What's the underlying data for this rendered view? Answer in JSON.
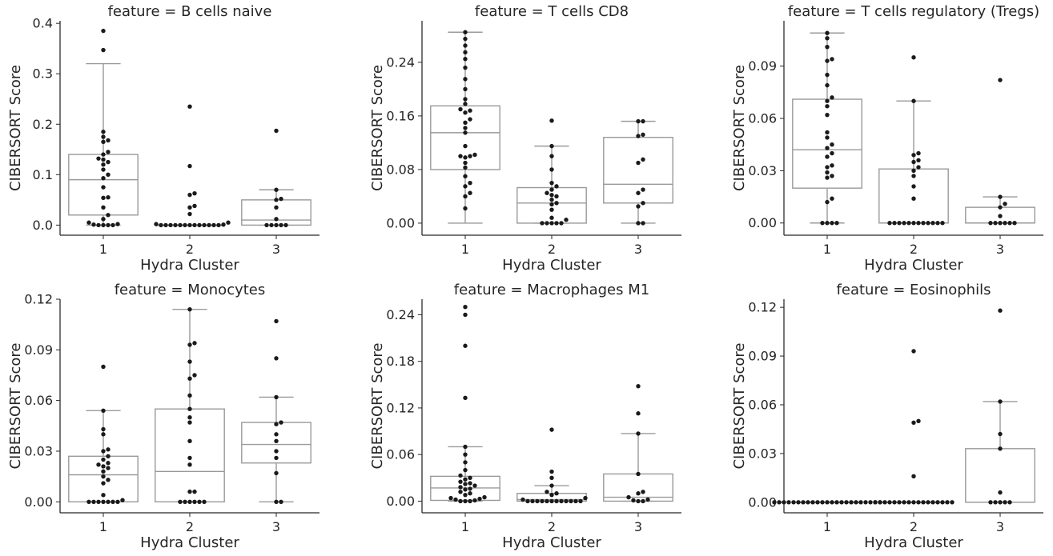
{
  "chart_data": [
    {
      "type": "box",
      "title": "feature = B cells naive",
      "xlabel": "Hydra Cluster",
      "ylabel": "CIBERSORT Score",
      "categories": [
        "1",
        "2",
        "3"
      ],
      "yticks": [
        "0.0",
        "0.1",
        "0.2",
        "0.3",
        "0.4"
      ],
      "ytick_values": [
        0,
        0.1,
        0.2,
        0.3,
        0.4
      ],
      "ylim": [
        -0.02,
        0.405
      ],
      "groups": [
        {
          "name": "1",
          "q1": 0.02,
          "median": 0.09,
          "q3": 0.14,
          "whisker_low": 0.0,
          "whisker_high": 0.32,
          "points": [
            0.385,
            0.347,
            0.185,
            0.175,
            0.168,
            0.165,
            0.145,
            0.14,
            0.132,
            0.13,
            0.125,
            0.12,
            0.11,
            0.1,
            0.093,
            0.075,
            0.055,
            0.054,
            0.035,
            0.02,
            0.012,
            0.005,
            0.002,
            0.001,
            0.0,
            0.0,
            0.0,
            0.0
          ]
        },
        {
          "name": "2",
          "q1": 0.0,
          "median": 0.0,
          "q3": 0.0,
          "whisker_low": 0.0,
          "whisker_high": 0.0,
          "points": [
            0.235,
            0.117,
            0.063,
            0.06,
            0.038,
            0.035,
            0.022,
            0.005,
            0.002,
            0.001,
            0.0,
            0.0,
            0.0,
            0.0,
            0.0,
            0.0,
            0.0,
            0.0,
            0.0,
            0.0,
            0.0,
            0.0,
            0.0
          ]
        },
        {
          "name": "3",
          "q1": 0.0,
          "median": 0.01,
          "q3": 0.05,
          "whisker_low": 0.0,
          "whisker_high": 0.07,
          "points": [
            0.187,
            0.07,
            0.052,
            0.05,
            0.035,
            0.012,
            0.0,
            0.0,
            0.0,
            0.0,
            0.0
          ]
        }
      ]
    },
    {
      "type": "box",
      "title": "feature = T cells CD8",
      "xlabel": "Hydra Cluster",
      "ylabel": "CIBERSORT Score",
      "categories": [
        "1",
        "2",
        "3"
      ],
      "yticks": [
        "0.00",
        "0.08",
        "0.16",
        "0.24"
      ],
      "ytick_values": [
        0,
        0.08,
        0.16,
        0.24
      ],
      "ylim": [
        -0.018,
        0.302
      ],
      "groups": [
        {
          "name": "1",
          "q1": 0.08,
          "median": 0.135,
          "q3": 0.175,
          "whisker_low": 0.0,
          "whisker_high": 0.285,
          "points": [
            0.285,
            0.275,
            0.265,
            0.255,
            0.245,
            0.232,
            0.215,
            0.2,
            0.185,
            0.178,
            0.17,
            0.168,
            0.165,
            0.155,
            0.15,
            0.142,
            0.135,
            0.115,
            0.102,
            0.1,
            0.1,
            0.098,
            0.09,
            0.083,
            0.07,
            0.06,
            0.055,
            0.045,
            0.04,
            0.022
          ]
        },
        {
          "name": "2",
          "q1": 0.0,
          "median": 0.03,
          "q3": 0.053,
          "whisker_low": 0.0,
          "whisker_high": 0.115,
          "points": [
            0.153,
            0.115,
            0.1,
            0.08,
            0.06,
            0.055,
            0.05,
            0.045,
            0.042,
            0.04,
            0.035,
            0.03,
            0.028,
            0.02,
            0.008,
            0.005,
            0.0,
            0.0,
            0.0,
            0.0,
            0.0
          ]
        },
        {
          "name": "3",
          "q1": 0.03,
          "median": 0.058,
          "q3": 0.128,
          "whisker_low": 0.0,
          "whisker_high": 0.152,
          "points": [
            0.152,
            0.152,
            0.132,
            0.13,
            0.095,
            0.09,
            0.05,
            0.045,
            0.03,
            0.025,
            0.0,
            0.0
          ]
        }
      ]
    },
    {
      "type": "box",
      "title": "feature = T cells regulatory (Tregs)",
      "xlabel": "Hydra Cluster",
      "ylabel": "CIBERSORT Score",
      "categories": [
        "1",
        "2",
        "3"
      ],
      "yticks": [
        "0.00",
        "0.03",
        "0.06",
        "0.09"
      ],
      "ytick_values": [
        0,
        0.03,
        0.06,
        0.09
      ],
      "ylim": [
        -0.007,
        0.116
      ],
      "groups": [
        {
          "name": "1",
          "q1": 0.02,
          "median": 0.042,
          "q3": 0.071,
          "whisker_low": 0.0,
          "whisker_high": 0.109,
          "points": [
            0.109,
            0.106,
            0.101,
            0.094,
            0.093,
            0.085,
            0.079,
            0.072,
            0.07,
            0.067,
            0.062,
            0.052,
            0.049,
            0.045,
            0.043,
            0.04,
            0.038,
            0.033,
            0.032,
            0.029,
            0.027,
            0.026,
            0.014,
            0.012,
            0.0,
            0.0,
            0.0,
            0.0
          ]
        },
        {
          "name": "2",
          "q1": 0.0,
          "median": 0.0,
          "q3": 0.031,
          "whisker_low": 0.0,
          "whisker_high": 0.07,
          "points": [
            0.095,
            0.07,
            0.04,
            0.039,
            0.036,
            0.035,
            0.032,
            0.03,
            0.027,
            0.021,
            0.014,
            0.0,
            0.0,
            0.0,
            0.0,
            0.0,
            0.0,
            0.0,
            0.0,
            0.0,
            0.0,
            0.0,
            0.0
          ]
        },
        {
          "name": "3",
          "q1": 0.0,
          "median": 0.0,
          "q3": 0.009,
          "whisker_low": 0.0,
          "whisker_high": 0.015,
          "points": [
            0.082,
            0.015,
            0.011,
            0.009,
            0.004,
            0.0,
            0.0,
            0.0,
            0.0,
            0.0,
            0.0
          ]
        }
      ]
    },
    {
      "type": "box",
      "title": "feature = Monocytes",
      "xlabel": "Hydra Cluster",
      "ylabel": "CIBERSORT Score",
      "categories": [
        "1",
        "2",
        "3"
      ],
      "yticks": [
        "0.00",
        "0.03",
        "0.06",
        "0.09",
        "0.12"
      ],
      "ytick_values": [
        0,
        0.03,
        0.06,
        0.09,
        0.12
      ],
      "ylim": [
        -0.0065,
        0.12
      ],
      "groups": [
        {
          "name": "1",
          "q1": 0.0,
          "median": 0.016,
          "q3": 0.027,
          "whisker_low": 0.0,
          "whisker_high": 0.054,
          "points": [
            0.08,
            0.054,
            0.043,
            0.04,
            0.031,
            0.03,
            0.027,
            0.025,
            0.023,
            0.022,
            0.021,
            0.02,
            0.018,
            0.015,
            0.013,
            0.011,
            0.004,
            0.001,
            0.0,
            0.0,
            0.0,
            0.0,
            0.0,
            0.0,
            0.0
          ]
        },
        {
          "name": "2",
          "q1": 0.0,
          "median": 0.018,
          "q3": 0.055,
          "whisker_low": 0.0,
          "whisker_high": 0.114,
          "points": [
            0.114,
            0.094,
            0.093,
            0.083,
            0.075,
            0.073,
            0.063,
            0.055,
            0.05,
            0.047,
            0.036,
            0.026,
            0.022,
            0.006,
            0.006,
            0.0,
            0.0,
            0.0,
            0.0,
            0.0,
            0.0
          ]
        },
        {
          "name": "3",
          "q1": 0.023,
          "median": 0.034,
          "q3": 0.047,
          "whisker_low": 0.0,
          "whisker_high": 0.062,
          "points": [
            0.107,
            0.085,
            0.062,
            0.047,
            0.046,
            0.04,
            0.036,
            0.03,
            0.026,
            0.017,
            0.0,
            0.0
          ]
        }
      ]
    },
    {
      "type": "box",
      "title": "feature = Macrophages M1",
      "xlabel": "Hydra Cluster",
      "ylabel": "CIBERSORT Score",
      "categories": [
        "1",
        "2",
        "3"
      ],
      "yticks": [
        "0.00",
        "0.06",
        "0.12",
        "0.18",
        "0.24"
      ],
      "ytick_values": [
        0,
        0.06,
        0.12,
        0.18,
        0.24
      ],
      "ylim": [
        -0.015,
        0.26
      ],
      "groups": [
        {
          "name": "1",
          "q1": 0.001,
          "median": 0.017,
          "q3": 0.032,
          "whisker_low": 0.0,
          "whisker_high": 0.07,
          "points": [
            0.25,
            0.24,
            0.2,
            0.133,
            0.07,
            0.06,
            0.05,
            0.04,
            0.033,
            0.03,
            0.028,
            0.025,
            0.023,
            0.022,
            0.02,
            0.018,
            0.016,
            0.015,
            0.012,
            0.01,
            0.008,
            0.005,
            0.004,
            0.003,
            0.002,
            0.001,
            0.0,
            0.0,
            0.0
          ]
        },
        {
          "name": "2",
          "q1": 0.0,
          "median": 0.002,
          "q3": 0.01,
          "whisker_low": 0.0,
          "whisker_high": 0.02,
          "points": [
            0.092,
            0.038,
            0.03,
            0.02,
            0.012,
            0.01,
            0.008,
            0.004,
            0.002,
            0.0,
            0.0,
            0.0,
            0.0,
            0.0,
            0.0,
            0.0,
            0.0,
            0.0,
            0.0,
            0.0,
            0.0
          ]
        },
        {
          "name": "3",
          "q1": 0.0,
          "median": 0.005,
          "q3": 0.035,
          "whisker_low": 0.0,
          "whisker_high": 0.087,
          "points": [
            0.148,
            0.113,
            0.087,
            0.035,
            0.012,
            0.01,
            0.005,
            0.002,
            0.001,
            0.0,
            0.0
          ]
        }
      ]
    },
    {
      "type": "box",
      "title": "feature = Eosinophils",
      "xlabel": "Hydra Cluster",
      "ylabel": "CIBERSORT Score",
      "categories": [
        "1",
        "2",
        "3"
      ],
      "yticks": [
        "0.00",
        "0.03",
        "0.06",
        "0.09",
        "0.12"
      ],
      "ytick_values": [
        0,
        0.03,
        0.06,
        0.09,
        0.12
      ],
      "ylim": [
        -0.0065,
        0.125
      ],
      "groups": [
        {
          "name": "1",
          "q1": 0.0,
          "median": 0.0,
          "q3": 0.0,
          "whisker_low": 0.0,
          "whisker_high": 0.0,
          "points": [
            0.0,
            0.0,
            0.0,
            0.0,
            0.0,
            0.0,
            0.0,
            0.0,
            0.0,
            0.0,
            0.0,
            0.0,
            0.0,
            0.0,
            0.0,
            0.0,
            0.0,
            0.0,
            0.0,
            0.0,
            0.0,
            0.0,
            0.0
          ]
        },
        {
          "name": "2",
          "q1": 0.0,
          "median": 0.0,
          "q3": 0.0,
          "whisker_low": 0.0,
          "whisker_high": 0.0,
          "points": [
            0.093,
            0.05,
            0.049,
            0.016,
            0.0,
            0.0,
            0.0,
            0.0,
            0.0,
            0.0,
            0.0,
            0.0,
            0.0,
            0.0,
            0.0,
            0.0,
            0.0,
            0.0,
            0.0,
            0.0,
            0.0
          ]
        },
        {
          "name": "3",
          "q1": 0.0,
          "median": 0.0,
          "q3": 0.033,
          "whisker_low": 0.0,
          "whisker_high": 0.062,
          "points": [
            0.118,
            0.062,
            0.042,
            0.033,
            0.006,
            0.0,
            0.0,
            0.0,
            0.0,
            0.0
          ]
        }
      ]
    }
  ]
}
